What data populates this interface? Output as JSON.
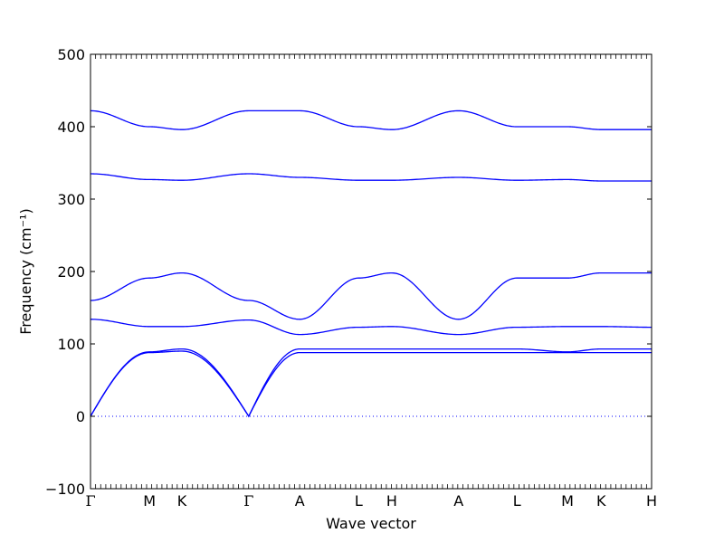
{
  "chart_data": {
    "type": "line",
    "xlabel": "Wave vector",
    "ylabel": "Frequency (cm⁻¹)",
    "ylim": [
      -100,
      500
    ],
    "yticks": [
      -100,
      0,
      100,
      200,
      300,
      400,
      500
    ],
    "xlim": [
      0,
      1
    ],
    "grid": false,
    "legend": "none",
    "line_color": "#0000ff",
    "zero_line": {
      "y": 0,
      "style": "dotted",
      "color": "#0000ff"
    },
    "special_points": [
      {
        "label": "Γ",
        "x": 0.0
      },
      {
        "label": "M",
        "x": 0.105
      },
      {
        "label": "K",
        "x": 0.163
      },
      {
        "label": "Γ",
        "x": 0.282
      },
      {
        "label": "A",
        "x": 0.373
      },
      {
        "label": "L",
        "x": 0.478
      },
      {
        "label": "H",
        "x": 0.537
      },
      {
        "label": "A",
        "x": 0.656
      },
      {
        "label": "L",
        "x": 0.76
      },
      {
        "label": "M",
        "x": 0.85
      },
      {
        "label": "K",
        "x": 0.91
      },
      {
        "label": "H",
        "x": 1.0
      }
    ],
    "series": [
      {
        "x": [
          0,
          0.105,
          0.163,
          0.282,
          0.373,
          0.478,
          0.537,
          0.656,
          0.76,
          0.85,
          0.91,
          1.0
        ],
        "values": [
          0,
          88,
          90,
          0,
          88,
          88,
          88,
          88,
          88,
          88,
          88,
          88
        ]
      },
      {
        "x": [
          0,
          0.105,
          0.163,
          0.282,
          0.373,
          0.478,
          0.537,
          0.656,
          0.76,
          0.85,
          0.91,
          1.0
        ],
        "values": [
          0,
          89,
          93,
          0,
          93,
          93,
          93,
          93,
          93,
          89,
          93,
          93
        ]
      },
      {
        "x": [
          0,
          0.105,
          0.163,
          0.282,
          0.373,
          0.478,
          0.537,
          0.656,
          0.76,
          0.85,
          0.91,
          1.0
        ],
        "values": [
          134,
          124,
          124,
          133,
          113,
          123,
          124,
          113,
          123,
          124,
          124,
          123
        ]
      },
      {
        "x": [
          0,
          0.105,
          0.163,
          0.282,
          0.373,
          0.478,
          0.537,
          0.656,
          0.76,
          0.85,
          0.91,
          1.0
        ],
        "values": [
          160,
          191,
          198,
          160,
          134,
          191,
          198,
          134,
          191,
          191,
          198,
          198
        ]
      },
      {
        "x": [
          0,
          0.105,
          0.163,
          0.282,
          0.373,
          0.478,
          0.537,
          0.656,
          0.76,
          0.85,
          0.91,
          1.0
        ],
        "values": [
          335,
          327,
          326,
          335,
          330,
          326,
          326,
          330,
          326,
          327,
          325,
          325
        ]
      },
      {
        "x": [
          0,
          0.105,
          0.163,
          0.282,
          0.373,
          0.478,
          0.537,
          0.656,
          0.76,
          0.85,
          0.91,
          1.0
        ],
        "values": [
          422,
          400,
          396,
          422,
          422,
          400,
          396,
          422,
          400,
          400,
          396,
          396
        ]
      }
    ]
  }
}
